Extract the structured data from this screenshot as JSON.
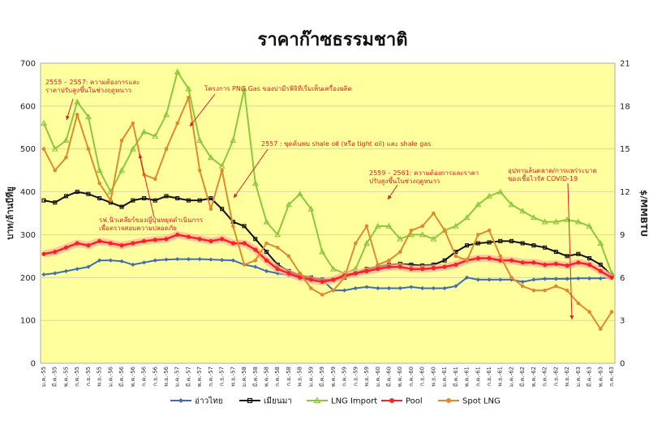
{
  "chart_data": {
    "type": "line",
    "title": "ราคาก๊าซธรรมชาติ",
    "ylabel": "บาท/ล้านบีทียู",
    "y2label": "$/MMBTU",
    "ylim": [
      0,
      700
    ],
    "y2lim": [
      0,
      21
    ],
    "yticks": [
      "0",
      "100",
      "200",
      "300",
      "400",
      "500",
      "600",
      "700"
    ],
    "y2ticks": [
      "0",
      "3",
      "6",
      "9",
      "12",
      "15",
      "18",
      "21"
    ],
    "grid": true,
    "legend_position": "bottom",
    "x": [
      "ม.ค.-55",
      "มี.ค.-55",
      "พ.ค.-55",
      "ก.ค.-55",
      "ก.ย.-55",
      "พ.ย.-55",
      "ม.ค.-56",
      "มี.ค.-56",
      "พ.ค.-56",
      "ก.ค.-56",
      "ก.ย.-56",
      "พ.ย.-56",
      "ม.ค.-57",
      "มี.ค.-57",
      "พ.ค.-57",
      "ก.ค.-57",
      "ก.ย.-57",
      "พ.ย.-57",
      "ม.ค.-58",
      "มี.ค.-58",
      "พ.ค.-58",
      "ก.ค.-58",
      "ก.ย.-58",
      "พ.ย.-58",
      "ม.ค.-59",
      "มี.ค.-59",
      "พ.ค.-59",
      "ก.ค.-59",
      "ก.ย.-59",
      "พ.ย.-59",
      "ม.ค.-60",
      "มี.ค.-60",
      "พ.ค.-60",
      "ก.ค.-60",
      "ก.ย.-60",
      "พ.ย.-60",
      "ม.ค.-61",
      "มี.ค.-61",
      "พ.ค.-61",
      "ก.ค.-61",
      "ก.ย.-61",
      "พ.ย.-61",
      "ม.ค.-62",
      "มี.ค.-62",
      "พ.ค.-62",
      "ก.ค.-62",
      "ก.ย.-62",
      "พ.ย.-62",
      "ม.ค.-63",
      "มี.ค.-63",
      "พ.ค.-63",
      "ก.ค.-63"
    ],
    "series": [
      {
        "name": "อ่าวไทย",
        "color": "#3a6fb0",
        "marker": "diamond",
        "values": [
          207,
          210,
          215,
          220,
          225,
          240,
          240,
          238,
          230,
          235,
          240,
          242,
          243,
          243,
          243,
          242,
          241,
          240,
          230,
          225,
          215,
          210,
          205,
          200,
          200,
          195,
          170,
          170,
          175,
          178,
          175,
          175,
          175,
          178,
          175,
          175,
          175,
          180,
          200,
          195,
          195,
          195,
          195,
          190,
          195,
          197,
          197,
          197,
          198,
          198,
          198,
          200
        ]
      },
      {
        "name": "เมียนมา",
        "color": "#111111",
        "marker": "square",
        "values": [
          380,
          375,
          390,
          400,
          395,
          385,
          375,
          365,
          380,
          385,
          380,
          390,
          385,
          380,
          380,
          385,
          360,
          330,
          320,
          290,
          260,
          230,
          215,
          205,
          200,
          195,
          195,
          200,
          210,
          220,
          225,
          230,
          232,
          230,
          228,
          230,
          240,
          260,
          275,
          280,
          282,
          285,
          285,
          280,
          275,
          270,
          260,
          250,
          255,
          245,
          230,
          205
        ]
      },
      {
        "name": "LNG Import",
        "color": "#8dc63f",
        "marker": "triangle",
        "values": [
          560,
          500,
          520,
          610,
          575,
          450,
          400,
          450,
          500,
          540,
          530,
          580,
          680,
          640,
          520,
          480,
          460,
          520,
          640,
          420,
          330,
          300,
          370,
          395,
          360,
          260,
          220,
          210,
          220,
          280,
          320,
          320,
          290,
          300,
          300,
          290,
          310,
          320,
          340,
          370,
          390,
          400,
          370,
          355,
          340,
          330,
          330,
          335,
          330,
          320,
          280,
          210
        ]
      },
      {
        "name": "Pool",
        "color": "#ff2020",
        "marker": "circle",
        "values": [
          255,
          260,
          270,
          280,
          275,
          285,
          280,
          275,
          280,
          285,
          288,
          290,
          300,
          295,
          290,
          285,
          290,
          280,
          280,
          265,
          240,
          220,
          210,
          200,
          195,
          190,
          195,
          205,
          210,
          215,
          220,
          225,
          225,
          220,
          220,
          222,
          225,
          230,
          240,
          245,
          245,
          240,
          240,
          235,
          235,
          230,
          232,
          228,
          235,
          230,
          215,
          200
        ]
      },
      {
        "name": "Spot LNG",
        "color": "#e08a30",
        "marker": "circle",
        "values": [
          500,
          450,
          480,
          580,
          500,
          420,
          380,
          520,
          560,
          440,
          430,
          500,
          560,
          620,
          450,
          360,
          450,
          320,
          230,
          240,
          280,
          270,
          250,
          210,
          175,
          160,
          170,
          200,
          280,
          320,
          230,
          240,
          260,
          310,
          320,
          350,
          310,
          250,
          240,
          300,
          310,
          250,
          200,
          180,
          170,
          170,
          180,
          170,
          140,
          120,
          80,
          120
        ]
      }
    ],
    "annotations": [
      {
        "lines": [
          "2555 – 2557: ความต้องการและ",
          "ราคาปรับสูงขึ้นในช่วงฤดูหนาว"
        ]
      },
      {
        "lines": [
          "โครงการ PNG Gas ของบ่ามีรพิจิทีเรี่มเห็นเครื่องผลิต"
        ]
      },
      {
        "lines": [
          "2557 : ขุดค้นพบ shale oil (หรือ tight oil) และ shale gas"
        ]
      },
      {
        "lines": [
          "รฟ.นิวเคลียร์ของญี่ปุ่นหยุดดำเนินการ",
          "เพื่อตรวจสอบความปลอดภัย"
        ]
      },
      {
        "lines": [
          "2559 – 2561: ความต้องการและราคา",
          "ปรับสูงขึ้นในช่วงฤดูหนาว"
        ]
      },
      {
        "lines": [
          "อุปทานล้นตลาด/การแพร่ระบาด",
          "ของเชื้อไวรัส COVID-19"
        ]
      }
    ]
  },
  "colors": {
    "plot_bg": "#ffff9e",
    "grid": "#c8c8a0",
    "annotation": "#e02020"
  }
}
